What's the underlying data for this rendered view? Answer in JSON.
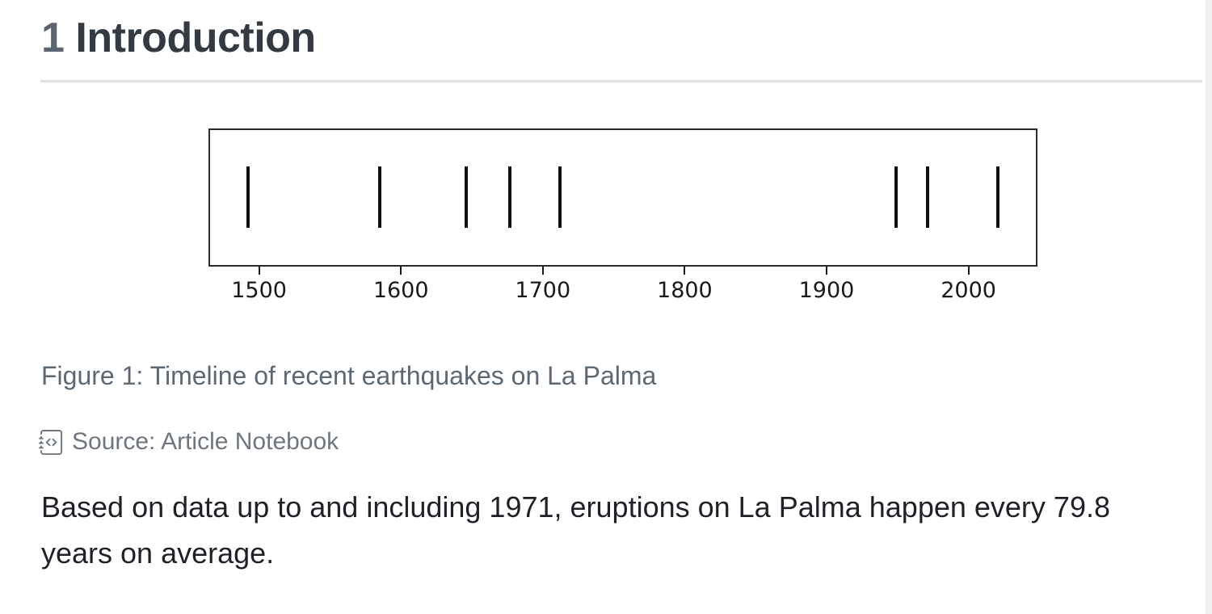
{
  "heading": {
    "number": "1",
    "title": "Introduction"
  },
  "figure": {
    "caption": "Figure 1: Timeline of recent earthquakes on La Palma",
    "source_label": "Source: Article Notebook",
    "source_icon": "journal-code-icon"
  },
  "paragraph": {
    "text": "Based on data up to and including 1971, eruptions on La Palma happen every 79.8 years on average."
  },
  "chart_data": {
    "type": "scatter",
    "subtype": "eventplot-timeline",
    "marker": "vertical-tick",
    "x": [
      1492,
      1585,
      1646,
      1677,
      1712,
      1949,
      1971,
      2021
    ],
    "xticks": [
      1500,
      1600,
      1700,
      1800,
      1900,
      2000
    ],
    "xlim": [
      1465.5,
      2047.5
    ],
    "title": "",
    "xlabel": "",
    "ylabel": "",
    "grid": false,
    "legend": false,
    "tick_color": "#101010",
    "spine_color": "#2a2a2a",
    "description": "Timeline of recent eruptions on La Palma shown as black vertical tick marks inside a bordered axes box"
  },
  "colors": {
    "section_number": "#5b6571",
    "heading": "#333a41",
    "rule": "#dee2e6",
    "caption": "#5c6975",
    "source": "#6e7780",
    "body": "#1e2228",
    "background": "#ffffff"
  }
}
